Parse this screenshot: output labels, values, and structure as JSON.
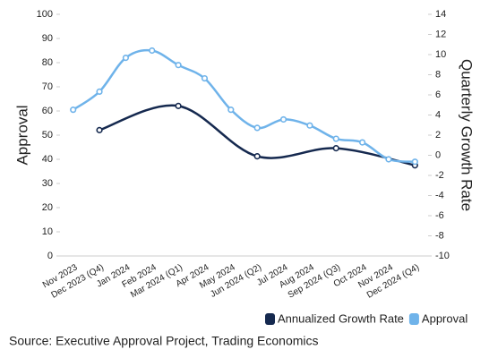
{
  "chart_data": {
    "type": "line",
    "categories": [
      "Nov 2023",
      "Dec 2023 (Q4)",
      "Jan 2024",
      "Feb 2024",
      "Mar 2024 (Q1)",
      "Apr 2024",
      "May 2024",
      "Jun 2024 (Q2)",
      "Jul 2024",
      "Aug 2024",
      "Sep 2024 (Q3)",
      "Oct 2024",
      "Nov 2024",
      "Dec 2024 (Q4)"
    ],
    "series": [
      {
        "name": "Annualized Growth Rate",
        "color": "#15294f",
        "axis": "y2",
        "values": [
          null,
          2.5,
          null,
          null,
          4.9,
          null,
          null,
          -0.1,
          null,
          null,
          0.7,
          null,
          null,
          -1.0
        ]
      },
      {
        "name": "Approval",
        "color": "#6fb3ea",
        "values": [
          60.5,
          68,
          82,
          85,
          79,
          73.5,
          60.5,
          53,
          56.5,
          54,
          48.5,
          47,
          40,
          39
        ]
      }
    ],
    "ylabel": "Approval",
    "y2label": "Quarterly Growth Rate",
    "ylim": [
      0,
      100
    ],
    "yticks": [
      0,
      10,
      20,
      30,
      40,
      50,
      60,
      70,
      80,
      90,
      100
    ],
    "y2lim": [
      -10,
      14
    ],
    "y2ticks": [
      -10,
      -8,
      -6,
      -4,
      -2,
      0,
      2,
      4,
      6,
      8,
      10,
      12,
      14
    ],
    "grid": false,
    "smooth": true,
    "span_gaps": true,
    "legend": "bottom-right",
    "source": "Source: Executive Approval Project, Trading Economics"
  }
}
